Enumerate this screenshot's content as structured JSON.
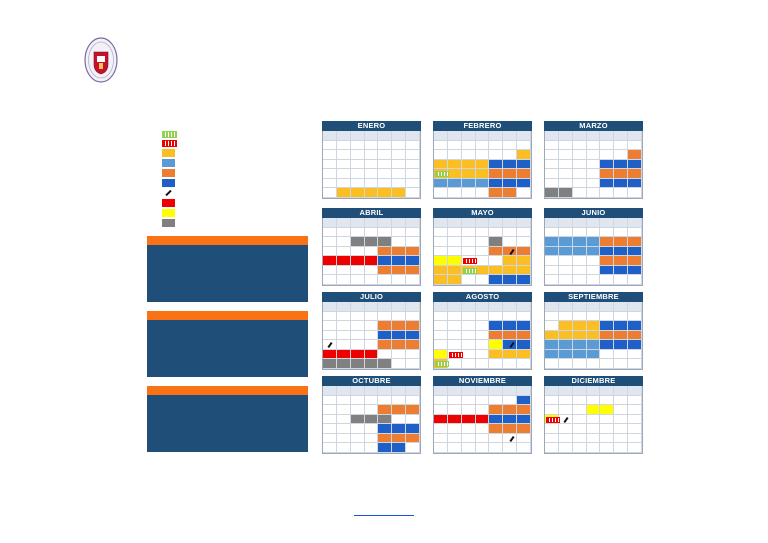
{
  "colors": {
    "navy": "#1f4e79",
    "orange": "#f97316",
    "yellow": "#fbbf24",
    "lightblue": "#5b9bd5",
    "darkorange": "#ed7d31",
    "blue": "#1f5fc8",
    "red": "#ef0000",
    "brightyellow": "#ffff00",
    "gray": "#808080",
    "green": "#92d050"
  },
  "legend": [
    {
      "color": "green",
      "pattern": true
    },
    {
      "color": "red",
      "pattern": true
    },
    {
      "color": "yellow"
    },
    {
      "color": "lightblue"
    },
    {
      "color": "darkorange"
    },
    {
      "color": "blue"
    },
    {
      "color": "pen-icon"
    },
    {
      "color": "red"
    },
    {
      "color": "brightyellow"
    },
    {
      "color": "gray"
    }
  ],
  "months": [
    {
      "name": "ENERO"
    },
    {
      "name": "FEBRERO"
    },
    {
      "name": "MARZO"
    },
    {
      "name": "ABRIL"
    },
    {
      "name": "MAYO"
    },
    {
      "name": "JUNIO"
    },
    {
      "name": "JULIO"
    },
    {
      "name": "AGOSTO"
    },
    {
      "name": "SEPTIEMBRE"
    },
    {
      "name": "OCTUBRE"
    },
    {
      "name": "NOVIEMBRE"
    },
    {
      "name": "DICIEMBRE"
    }
  ]
}
